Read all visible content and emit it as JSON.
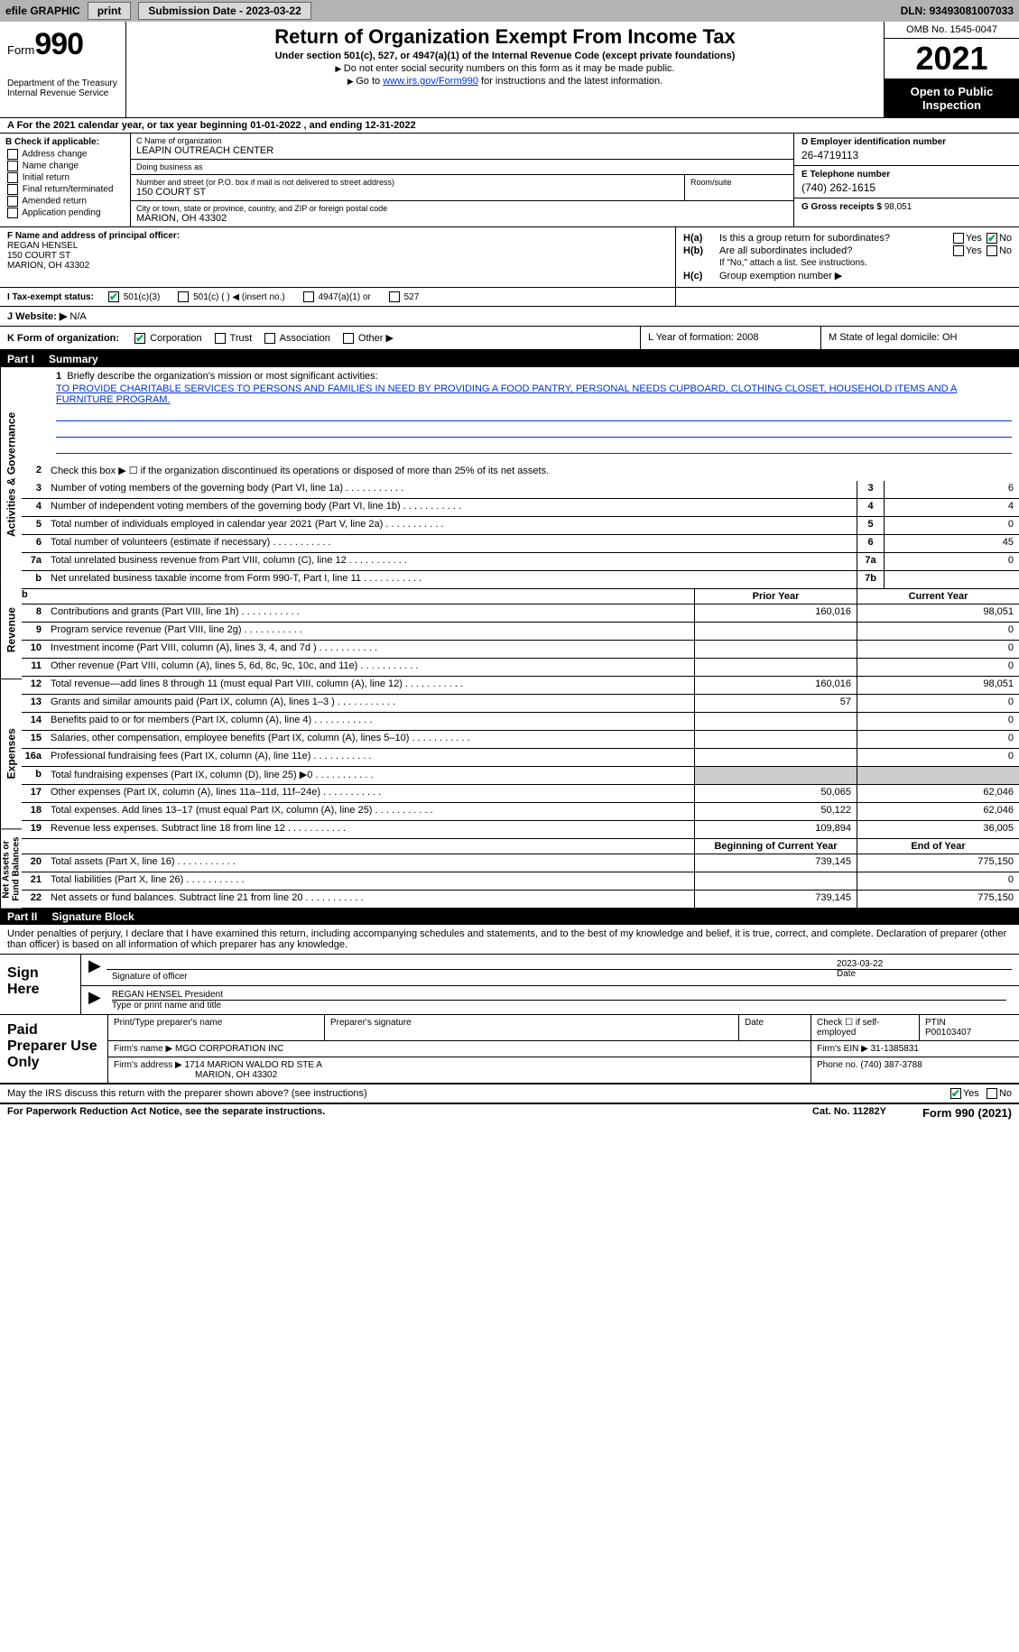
{
  "topbar": {
    "efile": "efile GRAPHIC",
    "print": "print",
    "submission_label": "Submission Date - ",
    "submission_date": "2023-03-22",
    "dln_label": "DLN: ",
    "dln": "93493081007033"
  },
  "header": {
    "form_word": "Form",
    "form_num": "990",
    "dept": "Department of the Treasury",
    "irs": "Internal Revenue Service",
    "title": "Return of Organization Exempt From Income Tax",
    "subtitle": "Under section 501(c), 527, or 4947(a)(1) of the Internal Revenue Code (except private foundations)",
    "note1": "Do not enter social security numbers on this form as it may be made public.",
    "note2_pre": "Go to ",
    "note2_link": "www.irs.gov/Form990",
    "note2_post": " for instructions and the latest information.",
    "omb": "OMB No. 1545-0047",
    "year": "2021",
    "inspect": "Open to Public Inspection"
  },
  "row_a": {
    "text_pre": "A For the 2021 calendar year, or tax year beginning ",
    "begin": "01-01-2022",
    "mid": "   , and ending ",
    "end": "12-31-2022"
  },
  "col_b": {
    "header": "B Check if applicable:",
    "items": [
      "Address change",
      "Name change",
      "Initial return",
      "Final return/terminated",
      "Amended return",
      "Application pending"
    ]
  },
  "col_c": {
    "name_label": "C Name of organization",
    "name": "LEAPIN OUTREACH CENTER",
    "dba_label": "Doing business as",
    "dba": "",
    "addr_label": "Number and street (or P.O. box if mail is not delivered to street address)",
    "addr": "150 COURT ST",
    "room_label": "Room/suite",
    "room": "",
    "city_label": "City or town, state or province, country, and ZIP or foreign postal code",
    "city": "MARION, OH  43302"
  },
  "col_d": {
    "ein_label": "D Employer identification number",
    "ein": "26-4719113",
    "tel_label": "E Telephone number",
    "tel": "(740) 262-1615",
    "gross_label": "G Gross receipts $ ",
    "gross": "98,051"
  },
  "section_f": {
    "label": "F Name and address of principal officer:",
    "name": "REGAN HENSEL",
    "addr1": "150 COURT ST",
    "addr2": "MARION, OH  43302"
  },
  "section_h": {
    "ha_label": "H(a)",
    "ha_text": "Is this a group return for subordinates?",
    "ha_no_checked": true,
    "hb_label": "H(b)",
    "hb_text": "Are all subordinates included?",
    "hb_note": "If \"No,\" attach a list. See instructions.",
    "hc_label": "H(c)",
    "hc_text": "Group exemption number ▶",
    "yes": "Yes",
    "no": "No"
  },
  "section_i": {
    "label": "I   Tax-exempt status:",
    "opts": [
      "501(c)(3)",
      "501(c) (  ) ◀ (insert no.)",
      "4947(a)(1) or",
      "527"
    ],
    "checked_idx": 0
  },
  "section_j": {
    "label": "J   Website: ▶",
    "val": "  N/A"
  },
  "section_k": {
    "k_label": "K Form of organization:",
    "k_opts": [
      "Corporation",
      "Trust",
      "Association",
      "Other ▶"
    ],
    "k_checked_idx": 0,
    "l_label": "L Year of formation: ",
    "l_val": "2008",
    "m_label": "M State of legal domicile: ",
    "m_val": "OH"
  },
  "part1": {
    "num": "Part I",
    "title": "Summary",
    "side_labels": [
      "Activities & Governance",
      "Revenue",
      "Expenses",
      "Net Assets or Fund Balances"
    ],
    "line1_label": "Briefly describe the organization's mission or most significant activities:",
    "mission": "TO PROVIDE CHARITABLE SERVICES TO PERSONS AND FAMILIES IN NEED BY PROVIDING A FOOD PANTRY, PERSONAL NEEDS CUPBOARD, CLOTHING CLOSET, HOUSEHOLD ITEMS AND A FURNITURE PROGRAM.",
    "line2": "Check this box ▶ ☐ if the organization discontinued its operations or disposed of more than 25% of its net assets.",
    "governance_lines": [
      {
        "n": "3",
        "t": "Number of voting members of the governing body (Part VI, line 1a)",
        "box": "3",
        "v": "6"
      },
      {
        "n": "4",
        "t": "Number of independent voting members of the governing body (Part VI, line 1b)",
        "box": "4",
        "v": "4"
      },
      {
        "n": "5",
        "t": "Total number of individuals employed in calendar year 2021 (Part V, line 2a)",
        "box": "5",
        "v": "0"
      },
      {
        "n": "6",
        "t": "Total number of volunteers (estimate if necessary)",
        "box": "6",
        "v": "45"
      },
      {
        "n": "7a",
        "t": "Total unrelated business revenue from Part VIII, column (C), line 12",
        "box": "7a",
        "v": "0"
      },
      {
        "n": "b",
        "t": "Net unrelated business taxable income from Form 990-T, Part I, line 11",
        "box": "7b",
        "v": ""
      }
    ],
    "col_prior": "Prior Year",
    "col_current": "Current Year",
    "revenue_lines": [
      {
        "n": "8",
        "t": "Contributions and grants (Part VIII, line 1h)",
        "p": "160,016",
        "c": "98,051"
      },
      {
        "n": "9",
        "t": "Program service revenue (Part VIII, line 2g)",
        "p": "",
        "c": "0"
      },
      {
        "n": "10",
        "t": "Investment income (Part VIII, column (A), lines 3, 4, and 7d )",
        "p": "",
        "c": "0"
      },
      {
        "n": "11",
        "t": "Other revenue (Part VIII, column (A), lines 5, 6d, 8c, 9c, 10c, and 11e)",
        "p": "",
        "c": "0"
      },
      {
        "n": "12",
        "t": "Total revenue—add lines 8 through 11 (must equal Part VIII, column (A), line 12)",
        "p": "160,016",
        "c": "98,051"
      }
    ],
    "expense_lines": [
      {
        "n": "13",
        "t": "Grants and similar amounts paid (Part IX, column (A), lines 1–3 )",
        "p": "57",
        "c": "0"
      },
      {
        "n": "14",
        "t": "Benefits paid to or for members (Part IX, column (A), line 4)",
        "p": "",
        "c": "0"
      },
      {
        "n": "15",
        "t": "Salaries, other compensation, employee benefits (Part IX, column (A), lines 5–10)",
        "p": "",
        "c": "0"
      },
      {
        "n": "16a",
        "t": "Professional fundraising fees (Part IX, column (A), line 11e)",
        "p": "",
        "c": "0"
      },
      {
        "n": "b",
        "t": "Total fundraising expenses (Part IX, column (D), line 25) ▶0",
        "p": "shade",
        "c": "shade"
      },
      {
        "n": "17",
        "t": "Other expenses (Part IX, column (A), lines 11a–11d, 11f–24e)",
        "p": "50,065",
        "c": "62,046"
      },
      {
        "n": "18",
        "t": "Total expenses. Add lines 13–17 (must equal Part IX, column (A), line 25)",
        "p": "50,122",
        "c": "62,046"
      },
      {
        "n": "19",
        "t": "Revenue less expenses. Subtract line 18 from line 12",
        "p": "109,894",
        "c": "36,005"
      }
    ],
    "col_begin": "Beginning of Current Year",
    "col_endyr": "End of Year",
    "netasset_lines": [
      {
        "n": "20",
        "t": "Total assets (Part X, line 16)",
        "p": "739,145",
        "c": "775,150"
      },
      {
        "n": "21",
        "t": "Total liabilities (Part X, line 26)",
        "p": "",
        "c": "0"
      },
      {
        "n": "22",
        "t": "Net assets or fund balances. Subtract line 21 from line 20",
        "p": "739,145",
        "c": "775,150"
      }
    ]
  },
  "part2": {
    "num": "Part II",
    "title": "Signature Block",
    "declaration": "Under penalties of perjury, I declare that I have examined this return, including accompanying schedules and statements, and to the best of my knowledge and belief, it is true, correct, and complete. Declaration of preparer (other than officer) is based on all information of which preparer has any knowledge.",
    "sign_here": "Sign Here",
    "sig_officer": "Signature of officer",
    "sig_date_label": "Date",
    "sig_date": "2023-03-22",
    "officer_name": "REGAN HENSEL President",
    "type_name": "Type or print name and title",
    "paid_prep": "Paid Preparer Use Only",
    "prep_name_label": "Print/Type preparer's name",
    "prep_name": "",
    "prep_sig_label": "Preparer's signature",
    "prep_date_label": "Date",
    "prep_check": "Check ☐ if self-employed",
    "ptin_label": "PTIN",
    "ptin": "P00103407",
    "firm_name_label": "Firm's name    ▶ ",
    "firm_name": "MGO CORPORATION INC",
    "firm_ein_label": "Firm's EIN ▶ ",
    "firm_ein": "31-1385831",
    "firm_addr_label": "Firm's address ▶ ",
    "firm_addr1": "1714 MARION WALDO RD STE A",
    "firm_addr2": "MARION, OH  43302",
    "firm_phone_label": "Phone no. ",
    "firm_phone": "(740) 387-3788"
  },
  "footer": {
    "q": "May the IRS discuss this return with the preparer shown above? (see instructions)",
    "yes": "Yes",
    "no": "No",
    "yes_checked": true,
    "left": "For Paperwork Reduction Act Notice, see the separate instructions.",
    "center": "Cat. No. 11282Y",
    "right_pre": "Form ",
    "right_form": "990",
    "right_post": " (2021)"
  }
}
